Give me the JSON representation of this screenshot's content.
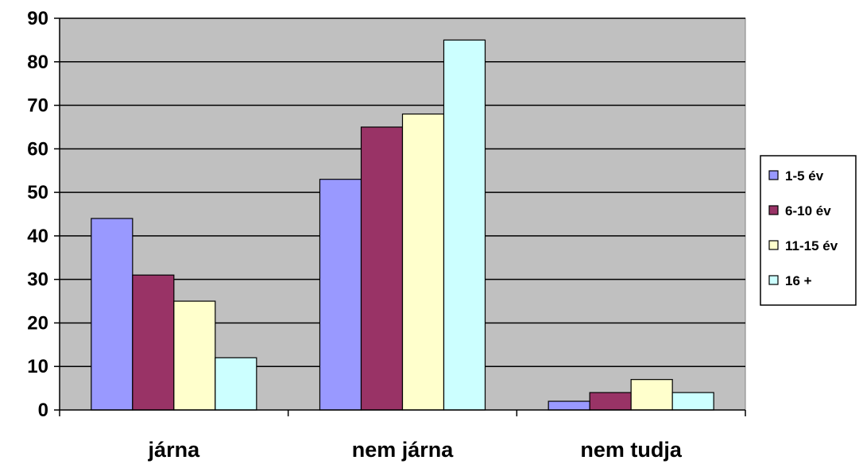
{
  "chart_data": {
    "type": "bar",
    "title": "",
    "xlabel": "",
    "ylabel": "",
    "categories": [
      "járna",
      "nem járna",
      "nem tudja"
    ],
    "series": [
      {
        "name": "1-5 év",
        "values": [
          44,
          53,
          2
        ],
        "color": "#9999FF"
      },
      {
        "name": "6-10 év",
        "values": [
          31,
          65,
          4
        ],
        "color": "#993366"
      },
      {
        "name": "11-15 év",
        "values": [
          25,
          68,
          7
        ],
        "color": "#FFFFCC"
      },
      {
        "name": "16 +",
        "values": [
          12,
          85,
          4
        ],
        "color": "#CCFFFF"
      }
    ],
    "ylim": [
      0,
      90
    ],
    "yticks": [
      0,
      10,
      20,
      30,
      40,
      50,
      60,
      70,
      80,
      90
    ],
    "grid": true,
    "plot_background": "#C0C0C0",
    "legend_position": "right"
  }
}
